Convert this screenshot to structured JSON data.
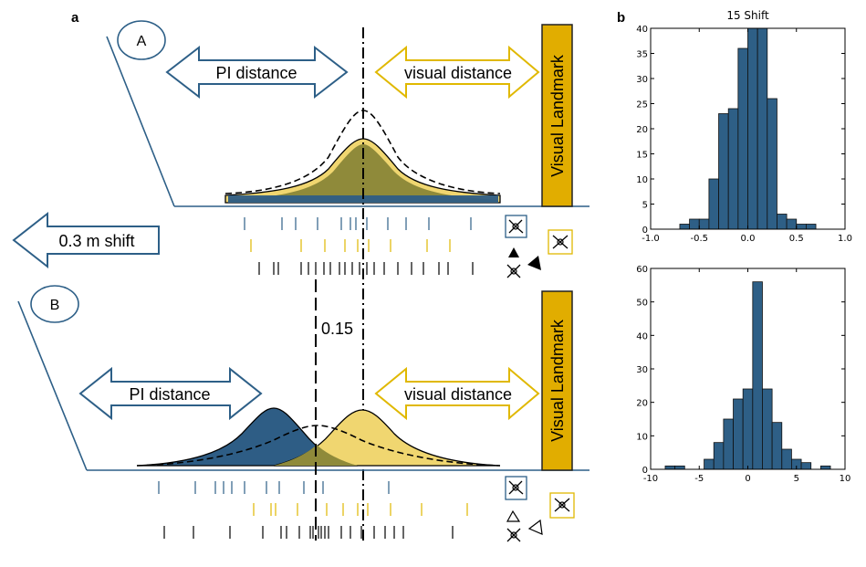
{
  "labels": {
    "panel_a": "a",
    "panel_b": "b",
    "circle_A": "A",
    "circle_B": "B",
    "pi_distance_top": "PI distance",
    "visual_distance_top": "visual distance",
    "visual_landmark_top": "Visual Landmark",
    "shift_arrow": "0.3 m shift",
    "pi_distance_bottom": "PI distance",
    "visual_distance_bottom": "visual distance",
    "visual_landmark_bottom": "Visual Landmark",
    "shift_value": "0.15"
  },
  "colors": {
    "blue": "#2d5f87",
    "blue_fill": "#2e5d85",
    "yellow": "#e0b800",
    "yellow_fill": "#f0d670",
    "olive": "#8f8a3a",
    "landmark": "#e1ad00",
    "hist_fill": "#2e5f86"
  },
  "chart_data": [
    {
      "type": "bar",
      "title": "15 Shift",
      "xlabel": "",
      "ylabel": "",
      "xlim": [
        -1.0,
        1.0
      ],
      "ylim": [
        0,
        40
      ],
      "xticks": [
        "-1.0",
        "-0.5",
        "0.0",
        "0.5",
        "1.0"
      ],
      "yticks": [
        "0",
        "5",
        "10",
        "15",
        "20",
        "25",
        "30",
        "35",
        "40"
      ],
      "bin_edges": [
        -1.0,
        -0.9,
        -0.8,
        -0.7,
        -0.6,
        -0.5,
        -0.4,
        -0.3,
        -0.2,
        -0.1,
        0.0,
        0.1,
        0.2,
        0.3,
        0.4,
        0.5,
        0.6,
        0.7,
        0.8,
        0.9,
        1.0
      ],
      "values": [
        0,
        0,
        0,
        1,
        2,
        2,
        10,
        23,
        24,
        36,
        40,
        40,
        26,
        3,
        2,
        1,
        1,
        0,
        0,
        0
      ]
    },
    {
      "type": "bar",
      "title": "",
      "xlabel": "",
      "ylabel": "",
      "xlim": [
        -10,
        10
      ],
      "ylim": [
        0,
        60
      ],
      "xticks": [
        "-10",
        "-5",
        "0",
        "5",
        "10"
      ],
      "yticks": [
        "0",
        "10",
        "20",
        "30",
        "40",
        "50",
        "60"
      ],
      "bin_edges": [
        -8.5,
        -7.5,
        -6.5,
        -5.5,
        -4.5,
        -3.5,
        -2.5,
        -1.5,
        -0.5,
        0.5,
        1.5,
        2.5,
        3.5,
        4.5,
        5.5,
        6.5,
        7.5,
        8.5
      ],
      "values": [
        1,
        1,
        0,
        0,
        3,
        8,
        15,
        21,
        24,
        56,
        24,
        14,
        6,
        3,
        2,
        0,
        1
      ]
    }
  ]
}
